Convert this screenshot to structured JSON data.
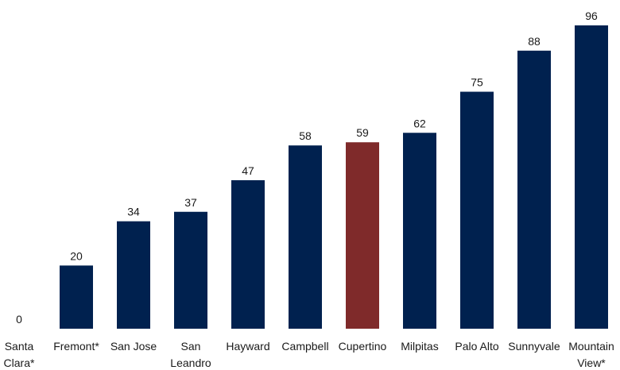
{
  "chart_data": {
    "type": "bar",
    "title": "",
    "xlabel": "",
    "ylabel": "",
    "ylim": [
      0,
      100
    ],
    "grid": false,
    "legend": "none",
    "categories": [
      [
        "Santa",
        "Clara*"
      ],
      [
        "Fremont*"
      ],
      [
        "San Jose"
      ],
      [
        "San",
        "Leandro"
      ],
      [
        "Hayward"
      ],
      [
        "Campbell"
      ],
      [
        "Cupertino"
      ],
      [
        "Milpitas"
      ],
      [
        "Palo Alto"
      ],
      [
        "Sunnyvale"
      ],
      [
        "Mountain",
        "View*"
      ]
    ],
    "values": [
      0,
      20,
      34,
      37,
      47,
      58,
      59,
      62,
      75,
      88,
      96
    ],
    "data_labels": [
      "0",
      "20",
      "34",
      "37",
      "47",
      "58",
      "59",
      "62",
      "75",
      "88",
      "96"
    ],
    "colors": {
      "default": "#00214f",
      "highlight": "#7f2a2a"
    },
    "highlight_index": 6
  }
}
